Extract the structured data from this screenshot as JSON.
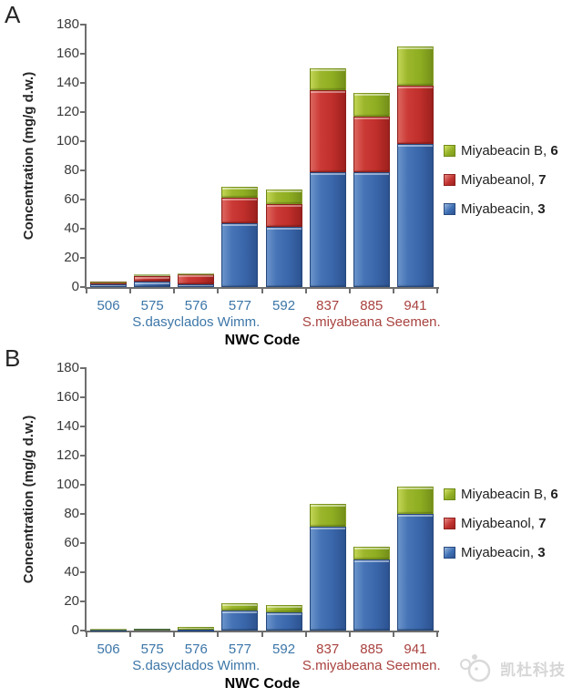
{
  "watermark": {
    "text": "凯杜科技"
  },
  "colors": {
    "series_blue": "#3E6FB4",
    "series_red": "#C23330",
    "series_green": "#92B025",
    "code_label_blue": "#3C76A8",
    "code_label_red": "#A8423F",
    "axis": "#6E6E6E"
  },
  "chart_data": [
    {
      "panel_label": "A",
      "type": "bar",
      "stacked": true,
      "xlabel": "NWC Code",
      "ylabel": "Concentration (mg/g d.w.)",
      "ylim": [
        0,
        180
      ],
      "yticks": [
        0,
        20,
        40,
        60,
        80,
        100,
        120,
        140,
        160,
        180
      ],
      "grid": false,
      "legend_position": "right",
      "categories": [
        "506",
        "575",
        "576",
        "577",
        "592",
        "837",
        "885",
        "941"
      ],
      "category_colors": [
        "blue",
        "blue",
        "blue",
        "blue",
        "blue",
        "red",
        "red",
        "red"
      ],
      "group_labels": [
        {
          "text": "S.dasyclados Wimm.",
          "color": "blue",
          "span": [
            0,
            4
          ]
        },
        {
          "text": "S.miyabeana Seemen.",
          "color": "red",
          "span": [
            5,
            7
          ]
        }
      ],
      "series": [
        {
          "name": "Miyabeacin, 3",
          "color_key": "blue",
          "values": [
            2,
            4,
            2,
            44,
            41,
            79,
            79,
            98
          ]
        },
        {
          "name": "Miyabeanol, 7",
          "color_key": "red",
          "values": [
            1.5,
            3.5,
            6.5,
            17,
            16,
            56,
            38,
            40
          ]
        },
        {
          "name": "Miyabeacin B, 6",
          "color_key": "green",
          "values": [
            0.5,
            1.5,
            1,
            8,
            10,
            15,
            16,
            27
          ]
        }
      ],
      "legend": [
        {
          "label": "Miyabeacin B, ",
          "number": "6",
          "color_key": "green"
        },
        {
          "label": "Miyabeanol, ",
          "number": "7",
          "color_key": "red"
        },
        {
          "label": "Miyabeacin, ",
          "number": "3",
          "color_key": "blue"
        }
      ]
    },
    {
      "panel_label": "B",
      "type": "bar",
      "stacked": true,
      "xlabel": "NWC Code",
      "ylabel": "Concentration (mg/g d.w.)",
      "ylim": [
        0,
        180
      ],
      "yticks": [
        0,
        20,
        40,
        60,
        80,
        100,
        120,
        140,
        160,
        180
      ],
      "grid": false,
      "legend_position": "right",
      "categories": [
        "506",
        "575",
        "576",
        "577",
        "592",
        "837",
        "885",
        "941"
      ],
      "category_colors": [
        "blue",
        "blue",
        "blue",
        "blue",
        "blue",
        "red",
        "red",
        "red"
      ],
      "group_labels": [
        {
          "text": "S.dasyclados Wimm.",
          "color": "blue",
          "span": [
            0,
            4
          ]
        },
        {
          "text": "S.miyabeana Seemen.",
          "color": "red",
          "span": [
            5,
            7
          ]
        }
      ],
      "series": [
        {
          "name": "Miyabeacin, 3",
          "color_key": "blue",
          "values": [
            0.4,
            1,
            0.8,
            14,
            12.5,
            71,
            48.5,
            80
          ]
        },
        {
          "name": "Miyabeanol, 7",
          "color_key": "red",
          "values": [
            0,
            0,
            0,
            0,
            0,
            0,
            0,
            0
          ]
        },
        {
          "name": "Miyabeacin B, 6",
          "color_key": "green",
          "values": [
            0.6,
            0.3,
            1.4,
            4.5,
            5,
            16,
            9,
            19
          ]
        }
      ],
      "legend": [
        {
          "label": "Miyabeacin B, ",
          "number": "6",
          "color_key": "green"
        },
        {
          "label": "Miyabeanol, ",
          "number": "7",
          "color_key": "red"
        },
        {
          "label": "Miyabeacin, ",
          "number": "3",
          "color_key": "blue"
        }
      ]
    }
  ]
}
